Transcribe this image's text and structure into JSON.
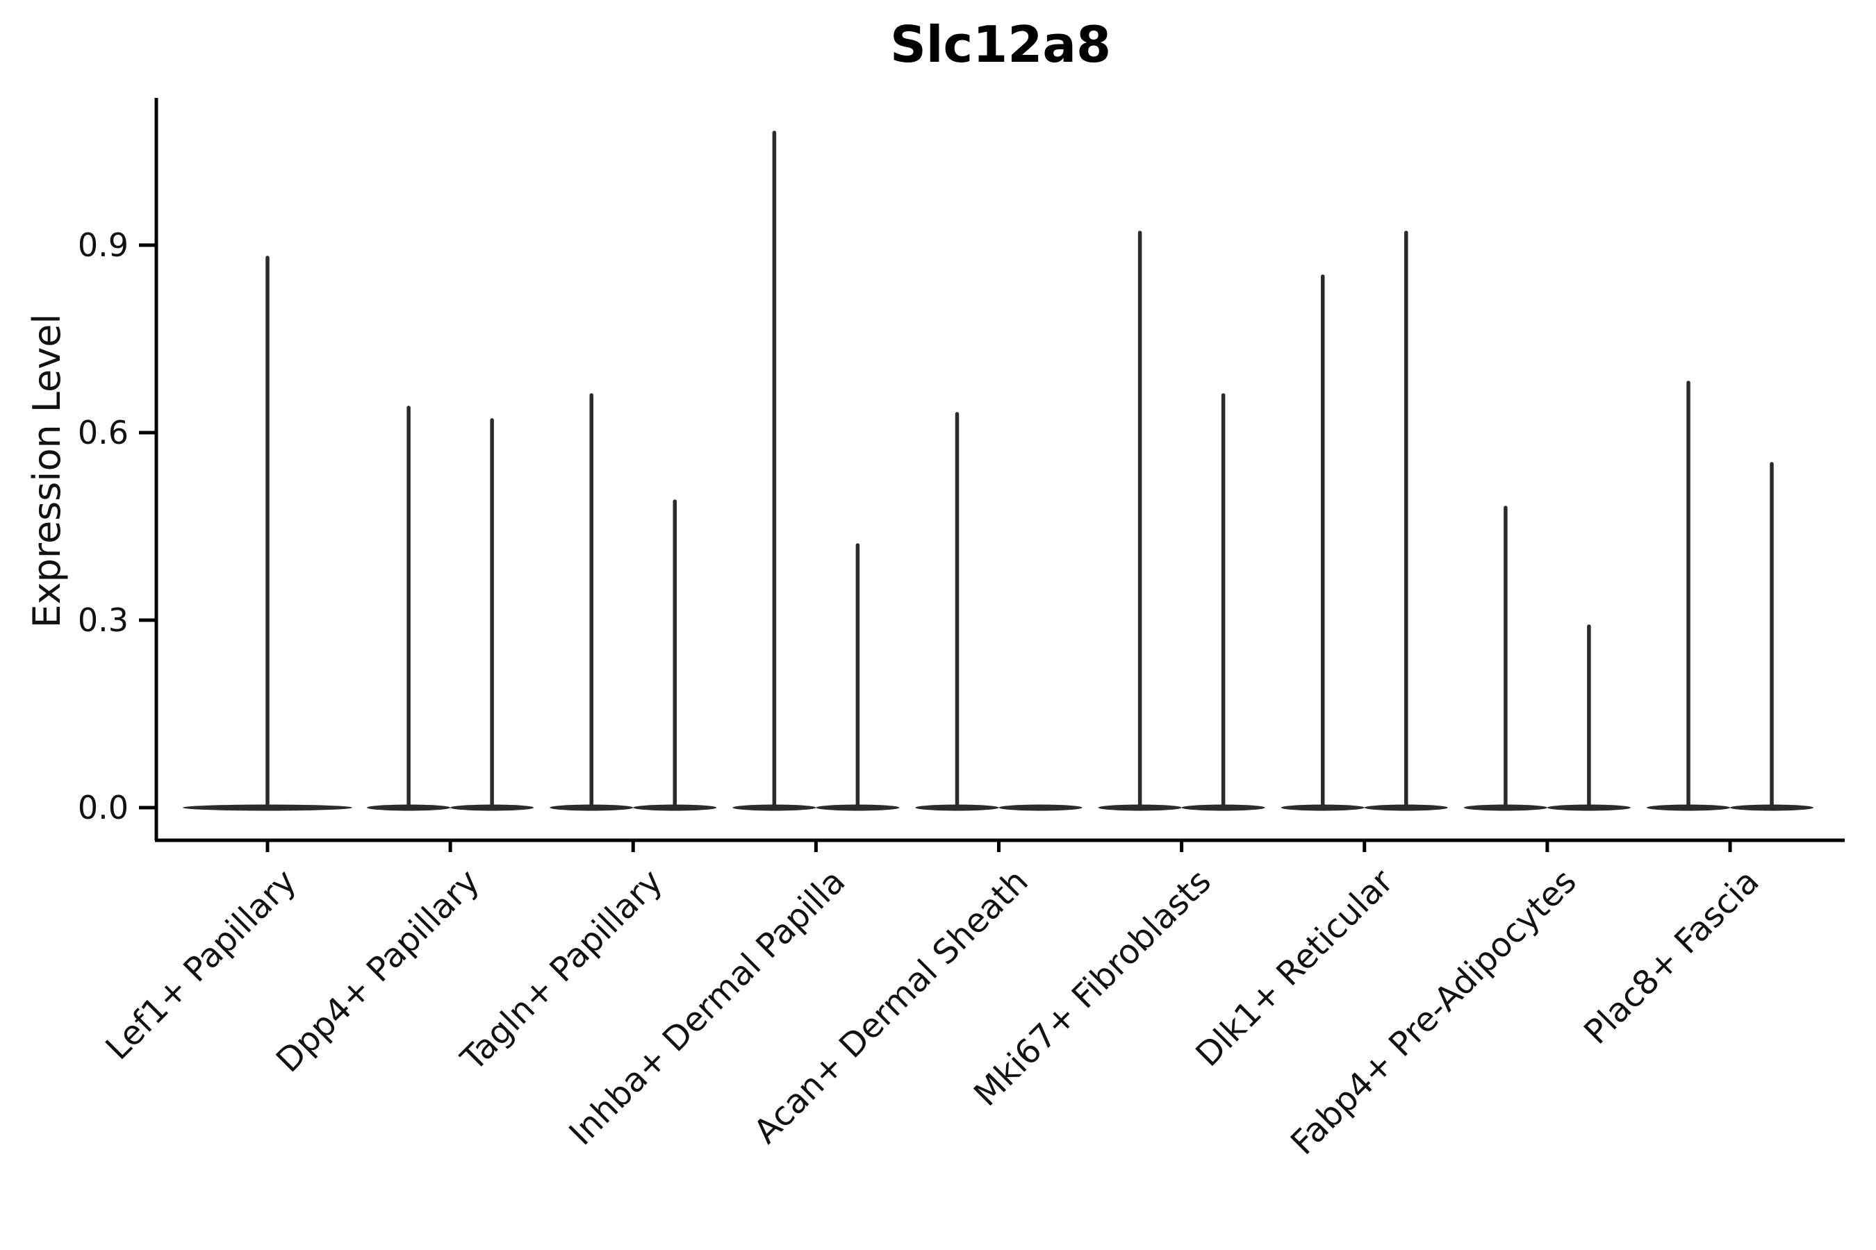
{
  "title": "Slc12a8",
  "y_axis_label": "Expression Level",
  "chart_data": {
    "type": "violin",
    "title": "Slc12a8",
    "xlabel": "",
    "ylabel": "Expression Level",
    "y_ticks": [
      {
        "label": "0.0",
        "value": 0.0
      },
      {
        "label": "0.3",
        "value": 0.3
      },
      {
        "label": "0.6",
        "value": 0.6
      },
      {
        "label": "0.9",
        "value": 0.9
      }
    ],
    "ylim": [
      -0.05,
      1.14
    ],
    "grid": false,
    "legend": "none",
    "line_color": "#2b2b2b",
    "categories": [
      "Lef1+ Papillary",
      "Dpp4+ Papillary",
      "Tagln+ Papillary",
      "Inhba+ Dermal Papilla",
      "Acan+ Dermal Sheath",
      "Mki67+ Fibroblasts",
      "Dlk1+ Reticular",
      "Fabp4+ Pre-Adipocytes",
      "Plac8+ Fascia"
    ],
    "violins": [
      {
        "category": "Lef1+ Papillary",
        "parts": [
          {
            "pos": "center",
            "max": 0.88
          }
        ]
      },
      {
        "category": "Dpp4+ Papillary",
        "parts": [
          {
            "pos": "left",
            "max": 0.64
          },
          {
            "pos": "right",
            "max": 0.62
          }
        ]
      },
      {
        "category": "Tagln+ Papillary",
        "parts": [
          {
            "pos": "left",
            "max": 0.66
          },
          {
            "pos": "right",
            "max": 0.49
          }
        ]
      },
      {
        "category": "Inhba+ Dermal Papilla",
        "parts": [
          {
            "pos": "left",
            "max": 1.08
          },
          {
            "pos": "right",
            "max": 0.42
          }
        ]
      },
      {
        "category": "Acan+ Dermal Sheath",
        "parts": [
          {
            "pos": "left",
            "max": 0.63
          },
          {
            "pos": "right",
            "max": 0.0
          }
        ]
      },
      {
        "category": "Mki67+ Fibroblasts",
        "parts": [
          {
            "pos": "left",
            "max": 0.92
          },
          {
            "pos": "right",
            "max": 0.66
          }
        ]
      },
      {
        "category": "Dlk1+ Reticular",
        "parts": [
          {
            "pos": "left",
            "max": 0.85
          },
          {
            "pos": "right",
            "max": 0.92
          }
        ]
      },
      {
        "category": "Fabp4+ Pre-Adipocytes",
        "parts": [
          {
            "pos": "left",
            "max": 0.48
          },
          {
            "pos": "right",
            "max": 0.29
          }
        ]
      },
      {
        "category": "Plac8+ Fascia",
        "parts": [
          {
            "pos": "left",
            "max": 0.68
          },
          {
            "pos": "right",
            "max": 0.55
          }
        ]
      }
    ]
  }
}
